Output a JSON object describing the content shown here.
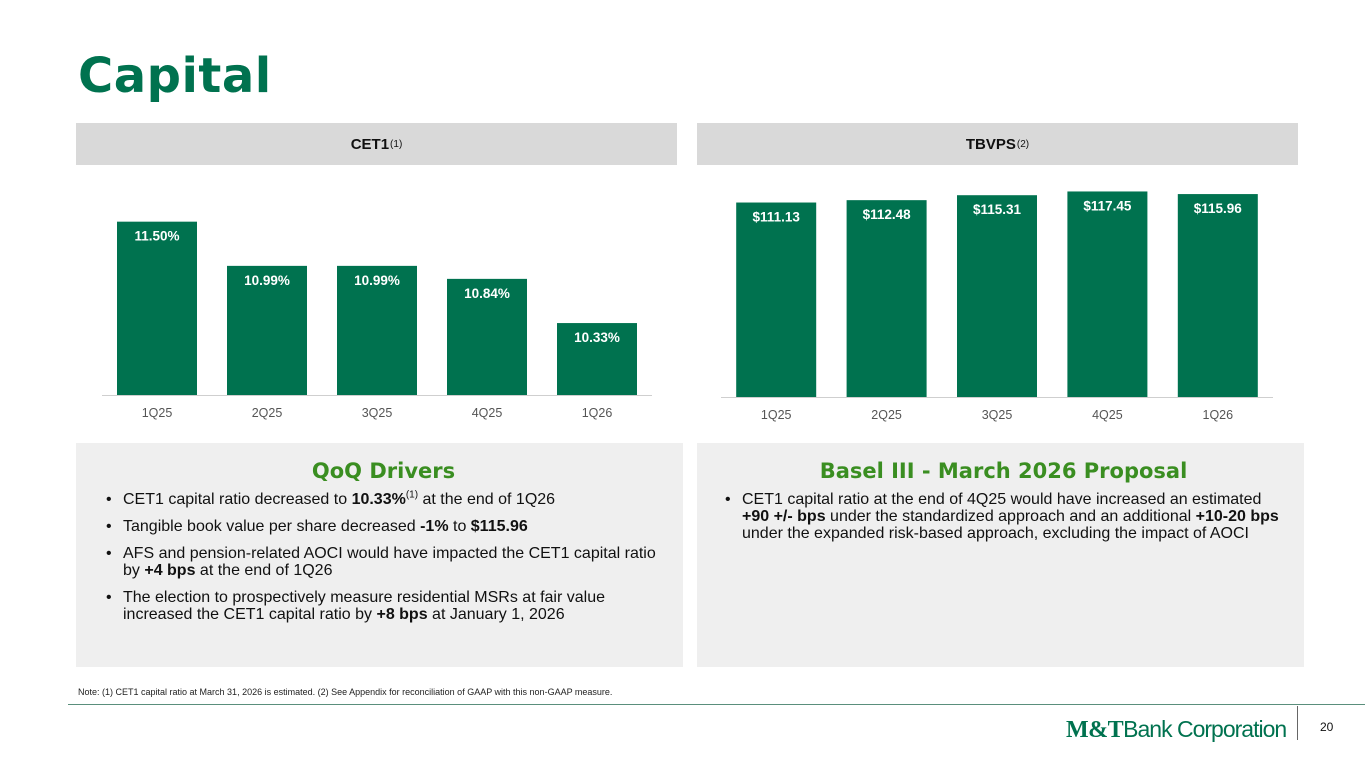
{
  "slide": {
    "title": "Capital",
    "note": "Note: (1) CET1 capital ratio at March 31, 2026 is estimated. (2) See Appendix for reconciliation of GAAP with this non-GAAP measure.",
    "page_number": "20",
    "logo": {
      "mark": "M&T",
      "text": "Bank Corporation"
    }
  },
  "charts": {
    "left_header": {
      "label": "CET1",
      "sup": "(1)"
    },
    "right_header": {
      "label": "TBVPS",
      "sup": "(2)"
    }
  },
  "chart_data": [
    {
      "type": "bar",
      "title": "CET1(1)",
      "categories": [
        "1Q25",
        "2Q25",
        "3Q25",
        "4Q25",
        "1Q26"
      ],
      "values": [
        11.5,
        10.99,
        10.99,
        10.84,
        10.33
      ],
      "labels": [
        "11.50%",
        "10.99%",
        "10.99%",
        "10.84%",
        "10.33%"
      ],
      "ylim": [
        9.5,
        11.75
      ],
      "color": "#00724F",
      "grid": false
    },
    {
      "type": "bar",
      "title": "TBVPS(2)",
      "categories": [
        "1Q25",
        "2Q25",
        "3Q25",
        "4Q25",
        "1Q26"
      ],
      "values": [
        111.13,
        112.48,
        115.31,
        117.45,
        115.96
      ],
      "labels": [
        "$111.13",
        "$112.48",
        "$115.31",
        "$117.45",
        "$115.96"
      ],
      "ylim": [
        0,
        124
      ],
      "color": "#00724F",
      "grid": false
    }
  ],
  "panels": {
    "left": {
      "title": "QoQ Drivers",
      "b1": {
        "a": "CET1 capital ratio decreased to ",
        "bold": "10.33%",
        "sup": "(1)",
        "c": " at the end of 1Q26"
      },
      "b2": {
        "a": "Tangible book value per share decreased ",
        "bold1": "-1%",
        "mid": " to ",
        "bold2": "$115.96"
      },
      "b3": {
        "a": "AFS and pension-related AOCI would have impacted the CET1 capital ratio by ",
        "bold": "+4 bps",
        "c": " at the end of 1Q26"
      },
      "b4": {
        "a": "The election to prospectively measure residential MSRs at fair value increased the CET1 capital ratio by ",
        "bold": "+8 bps",
        "c": " at January 1, 2026"
      }
    },
    "right": {
      "title": "Basel III - March 2026 Proposal",
      "b1": {
        "a": "CET1 capital ratio at the end of 4Q25 would have increased an estimated ",
        "bold1": "+90 +/- bps",
        "mid": " under the standardized approach and an additional ",
        "bold2": "+10-20 bps",
        "c": " under the expanded risk-based approach, excluding the impact of AOCI"
      }
    },
    "bullet_glyph": "•"
  },
  "colors": {
    "brand_green": "#00724F",
    "panel_title_green": "#3a8e21"
  }
}
